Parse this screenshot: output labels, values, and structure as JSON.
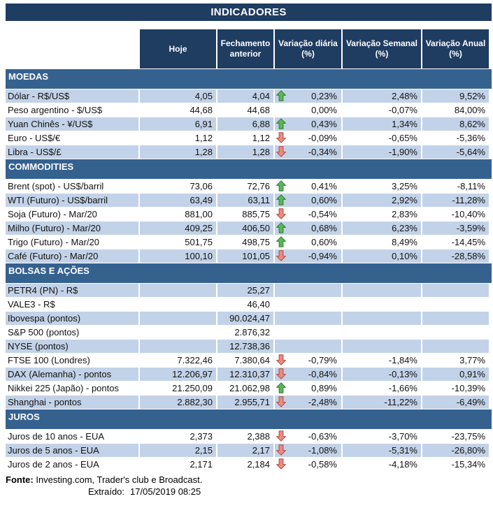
{
  "title": "INDICADORES",
  "columns": {
    "hoje": "Hoje",
    "fechamento": "Fechamento anterior",
    "diaria": "Variação diária (%)",
    "semanal": "Variação Semanal (%)",
    "anual": "Variação Anual (%)"
  },
  "icons": {
    "up": "up-arrow-icon",
    "down": "down-arrow-icon"
  },
  "colors": {
    "header_bg": "#1F3C61",
    "section_bg": "#35618F",
    "stripe_bg": "#C2D2E8",
    "arrow_up_fill": "#5CB657",
    "arrow_down_fill": "#E98C80"
  },
  "sections": [
    {
      "name": "MOEDAS",
      "rows": [
        {
          "label": "Dólar - R$/US$",
          "hoje": "4,05",
          "fechamento": "4,04",
          "arrow": "up",
          "diaria": "0,23%",
          "semanal": "2,48%",
          "anual": "9,52%"
        },
        {
          "label": "Peso argentino - $/US$",
          "hoje": "44,68",
          "fechamento": "44,68",
          "arrow": "none",
          "diaria": "0,00%",
          "semanal": "-0,07%",
          "anual": "84,00%"
        },
        {
          "label": "Yuan Chinês - ¥/US$",
          "hoje": "6,91",
          "fechamento": "6,88",
          "arrow": "up",
          "diaria": "0,43%",
          "semanal": "1,34%",
          "anual": "8,62%"
        },
        {
          "label": "Euro - US$/€",
          "hoje": "1,12",
          "fechamento": "1,12",
          "arrow": "down",
          "diaria": "-0,09%",
          "semanal": "-0,65%",
          "anual": "-5,36%"
        },
        {
          "label": "Libra - US$/£",
          "hoje": "1,28",
          "fechamento": "1,28",
          "arrow": "down",
          "diaria": "-0,34%",
          "semanal": "-1,90%",
          "anual": "-5,64%"
        }
      ]
    },
    {
      "name": "COMMODITIES",
      "rows": [
        {
          "label": "Brent (spot) - US$/barril",
          "hoje": "73,06",
          "fechamento": "72,76",
          "arrow": "up",
          "diaria": "0,41%",
          "semanal": "3,25%",
          "anual": "-8,11%"
        },
        {
          "label": "WTI (Futuro) - US$/barril",
          "hoje": "63,49",
          "fechamento": "63,11",
          "arrow": "up",
          "diaria": "0,60%",
          "semanal": "2,92%",
          "anual": "-11,28%"
        },
        {
          "label": "Soja (Futuro) - Mar/20",
          "hoje": "881,00",
          "fechamento": "885,75",
          "arrow": "down",
          "diaria": "-0,54%",
          "semanal": "2,83%",
          "anual": "-10,40%"
        },
        {
          "label": "Milho (Futuro) - Mar/20",
          "hoje": "409,25",
          "fechamento": "406,50",
          "arrow": "up",
          "diaria": "0,68%",
          "semanal": "6,23%",
          "anual": "-3,59%"
        },
        {
          "label": "Trigo (Futuro) - Mar/20",
          "hoje": "501,75",
          "fechamento": "498,75",
          "arrow": "up",
          "diaria": "0,60%",
          "semanal": "8,49%",
          "anual": "-14,45%"
        },
        {
          "label": "Café (Futuro) - Mar/20",
          "hoje": "100,10",
          "fechamento": "101,05",
          "arrow": "down",
          "diaria": "-0,94%",
          "semanal": "0,10%",
          "anual": "-28,58%"
        }
      ]
    },
    {
      "name": "BOLSAS E AÇÕES",
      "rows": [
        {
          "label": "PETR4 (PN) - R$",
          "hoje": "",
          "fechamento": "25,27",
          "arrow": "none",
          "diaria": "",
          "semanal": "",
          "anual": ""
        },
        {
          "label": "VALE3 - R$",
          "hoje": "",
          "fechamento": "46,40",
          "arrow": "none",
          "diaria": "",
          "semanal": "",
          "anual": ""
        },
        {
          "label": "Ibovespa (pontos)",
          "hoje": "",
          "fechamento": "90.024,47",
          "arrow": "none",
          "diaria": "",
          "semanal": "",
          "anual": ""
        },
        {
          "label": "S&P 500 (pontos)",
          "hoje": "",
          "fechamento": "2.876,32",
          "arrow": "none",
          "diaria": "",
          "semanal": "",
          "anual": ""
        },
        {
          "label": "NYSE (pontos)",
          "hoje": "",
          "fechamento": "12.738,36",
          "arrow": "none",
          "diaria": "",
          "semanal": "",
          "anual": ""
        },
        {
          "label": "FTSE 100 (Londres)",
          "hoje": "7.322,46",
          "fechamento": "7.380,64",
          "arrow": "down",
          "diaria": "-0,79%",
          "semanal": "-1,84%",
          "anual": "3,77%"
        },
        {
          "label": "DAX (Alemanha) - pontos",
          "hoje": "12.206,97",
          "fechamento": "12.310,37",
          "arrow": "down",
          "diaria": "-0,84%",
          "semanal": "-0,13%",
          "anual": "0,91%"
        },
        {
          "label": "Nikkei 225 (Japão) - pontos",
          "hoje": "21.250,09",
          "fechamento": "21.062,98",
          "arrow": "up",
          "diaria": "0,89%",
          "semanal": "-1,66%",
          "anual": "-10,39%"
        },
        {
          "label": "Shanghai - pontos",
          "hoje": "2.882,30",
          "fechamento": "2.955,71",
          "arrow": "down",
          "diaria": "-2,48%",
          "semanal": "-11,22%",
          "anual": "-6,49%"
        }
      ]
    },
    {
      "name": "JUROS",
      "rows": [
        {
          "label": "Juros de 10 anos - EUA",
          "hoje": "2,373",
          "fechamento": "2,388",
          "arrow": "down",
          "diaria": "-0,63%",
          "semanal": "-3,70%",
          "anual": "-23,75%"
        },
        {
          "label": "Juros de 5 anos - EUA",
          "hoje": "2,15",
          "fechamento": "2,17",
          "arrow": "down",
          "diaria": "-1,08%",
          "semanal": "-5,31%",
          "anual": "-26,80%"
        },
        {
          "label": "Juros de 2 anos - EUA",
          "hoje": "2,171",
          "fechamento": "2,184",
          "arrow": "down",
          "diaria": "-0,58%",
          "semanal": "-4,18%",
          "anual": "-15,34%"
        }
      ]
    }
  ],
  "footer": {
    "source_label": "Fonte:",
    "source_text": " Investing.com, Trader's club e Broadcast.",
    "extracted_label": "Extraído:",
    "extracted_value": "17/05/2019 08:25"
  }
}
